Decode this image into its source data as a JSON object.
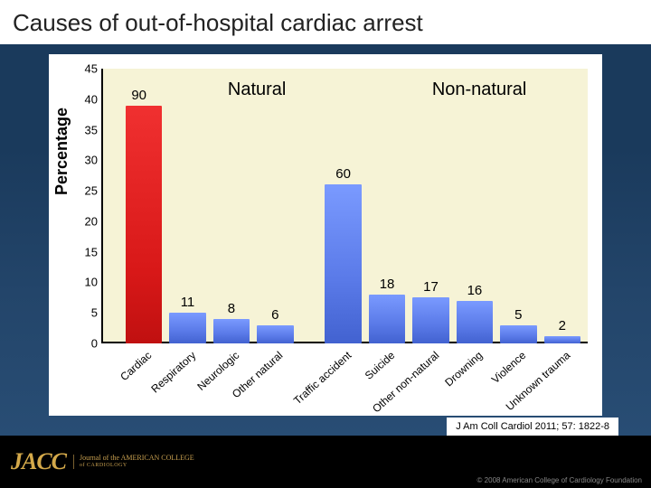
{
  "title": "Causes of out-of-hospital cardiac arrest",
  "citation": "J Am Coll Cardiol 2011; 57: 1822-8",
  "copyright": "© 2008 American College of Cardiology Foundation",
  "logo": {
    "mark": "JACC",
    "line1": "Journal of the AMERICAN COLLEGE",
    "line2": "of CARDIOLOGY"
  },
  "chart": {
    "type": "bar",
    "background_color": "#f6f3d6",
    "panel_color": "#ffffff",
    "ylabel": "Percentage",
    "ylabel_fontsize": 18,
    "ylim": [
      0,
      45
    ],
    "ytick_step": 5,
    "yticks": [
      0,
      5,
      10,
      15,
      20,
      25,
      30,
      35,
      40,
      45
    ],
    "tick_fontsize": 13,
    "value_label_fontsize": 15,
    "category_label_fontsize": 12,
    "category_label_rotation_deg": -42,
    "section_label_fontsize": 20,
    "bar_red_gradient": [
      "#f03030",
      "#d81818",
      "#c01010"
    ],
    "bar_blue_gradient": [
      "#7a9aff",
      "#5a7ae8",
      "#4262d0"
    ],
    "axis_color": "#000000",
    "sections": [
      {
        "label": "Natural",
        "x_percent": 26
      },
      {
        "label": "Non-natural",
        "x_percent": 68
      }
    ],
    "categories": [
      {
        "name": "Cardiac",
        "value": 90,
        "display_height": 39,
        "color": "red",
        "x_percent": 5,
        "width_percent": 7.5,
        "label_offset_x": -1
      },
      {
        "name": "Respiratory",
        "value": 11,
        "display_height": 5,
        "color": "blue",
        "x_percent": 14,
        "width_percent": 7.5
      },
      {
        "name": "Neurologic",
        "value": 8,
        "display_height": 4,
        "color": "blue",
        "x_percent": 23,
        "width_percent": 7.5
      },
      {
        "name": "Other natural",
        "value": 6,
        "display_height": 3,
        "color": "blue",
        "x_percent": 32,
        "width_percent": 7.5
      },
      {
        "name": "Traffic accident",
        "value": 60,
        "display_height": 26,
        "color": "blue",
        "x_percent": 46,
        "width_percent": 7.5
      },
      {
        "name": "Suicide",
        "value": 18,
        "display_height": 8,
        "color": "blue",
        "x_percent": 55,
        "width_percent": 7.5
      },
      {
        "name": "Other non-natural",
        "value": 17,
        "display_height": 7.5,
        "color": "blue",
        "x_percent": 64,
        "width_percent": 7.5
      },
      {
        "name": "Drowning",
        "value": 16,
        "display_height": 7,
        "color": "blue",
        "x_percent": 73,
        "width_percent": 7.5
      },
      {
        "name": "Violence",
        "value": 5,
        "display_height": 3,
        "color": "blue",
        "x_percent": 82,
        "width_percent": 7.5
      },
      {
        "name": "Unknown trauma",
        "value": 2,
        "display_height": 1.2,
        "color": "blue",
        "x_percent": 91,
        "width_percent": 7.5
      }
    ]
  }
}
